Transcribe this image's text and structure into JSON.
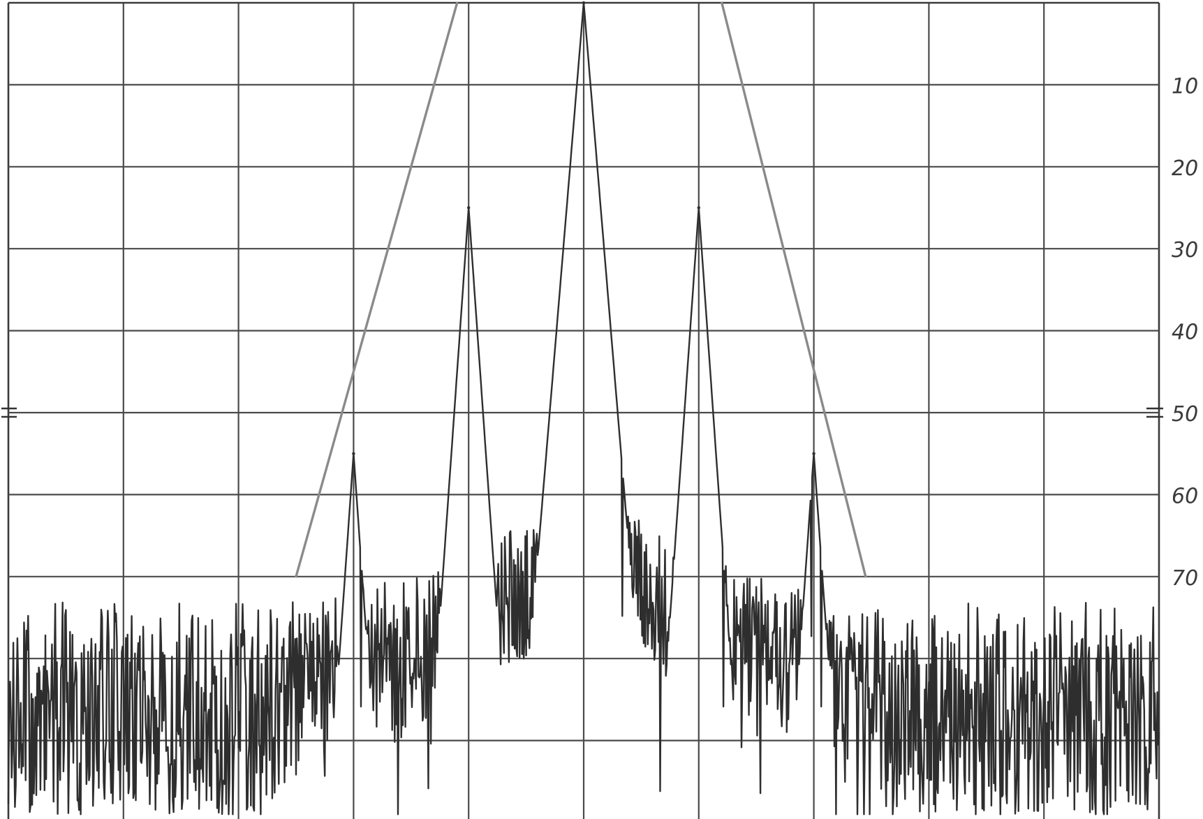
{
  "chart_data": {
    "type": "line",
    "title": "",
    "xlabel": "",
    "ylabel": "",
    "x_divisions": 10,
    "ylim": [
      0,
      100
    ],
    "y_direction": "down",
    "y_tick_labels": [
      "10",
      "20",
      "30",
      "40",
      "50",
      "60",
      "70"
    ],
    "y_tick_values": [
      10,
      20,
      30,
      40,
      50,
      60,
      70
    ],
    "grid": true,
    "colors": {
      "trace": "#2e2e2e",
      "envelope": "#8a8a8a",
      "grid": "#4a4a4a"
    },
    "series": [
      {
        "role": "spectrum-trace",
        "peaks": [
          {
            "x": 3.0,
            "y": 55
          },
          {
            "x": 4.0,
            "y": 25
          },
          {
            "x": 5.0,
            "y": 0
          },
          {
            "x": 6.0,
            "y": 25
          },
          {
            "x": 7.0,
            "y": 55
          }
        ],
        "noise_floor": {
          "top": 77,
          "bottom": 99
        }
      },
      {
        "role": "envelope-left",
        "points": [
          [
            2.5,
            70
          ],
          [
            3.9,
            0
          ]
        ]
      },
      {
        "role": "envelope-right",
        "points": [
          [
            6.2,
            0
          ],
          [
            7.45,
            70
          ]
        ]
      }
    ]
  }
}
